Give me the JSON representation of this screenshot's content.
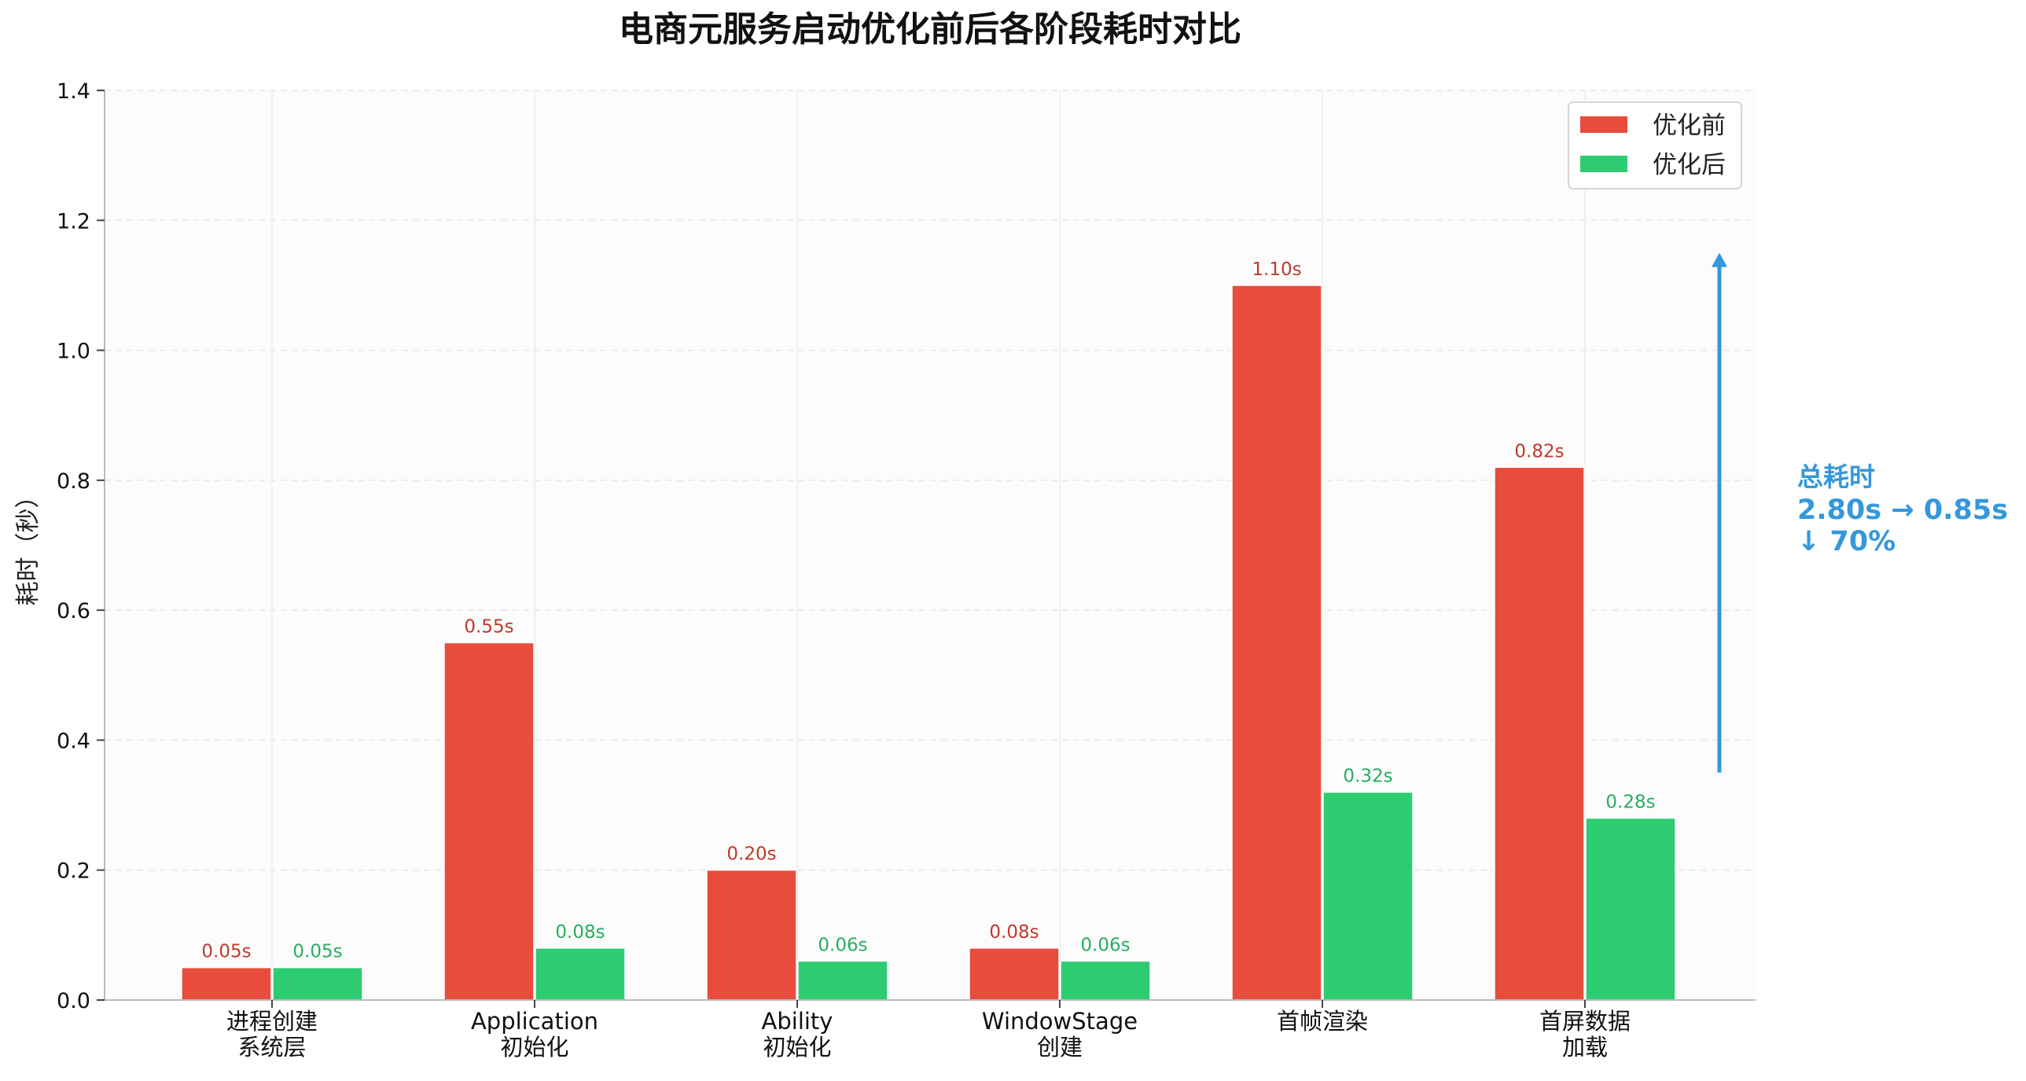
{
  "chart_data": {
    "type": "bar",
    "title": "电商元服务启动优化前后各阶段耗时对比",
    "xlabel": "",
    "ylabel": "耗时（秒）",
    "ylim": [
      0,
      1.4
    ],
    "yticks": [
      "0.0",
      "0.2",
      "0.4",
      "0.6",
      "0.8",
      "1.0",
      "1.2",
      "1.4"
    ],
    "categories": [
      [
        "进程创建",
        "系统层"
      ],
      [
        "Application",
        "初始化"
      ],
      [
        "Ability",
        "初始化"
      ],
      [
        "WindowStage",
        "创建"
      ],
      [
        "首帧渲染"
      ],
      [
        "首屏数据",
        "加载"
      ]
    ],
    "series": [
      {
        "name": "优化前",
        "color": "#e74c3c",
        "label_color": "#c0392b",
        "values": [
          0.05,
          0.55,
          0.2,
          0.08,
          1.1,
          0.82
        ],
        "labels": [
          "0.05s",
          "0.55s",
          "0.20s",
          "0.08s",
          "1.10s",
          "0.82s"
        ]
      },
      {
        "name": "优化后",
        "color": "#2ecc71",
        "label_color": "#27ae60",
        "values": [
          0.05,
          0.08,
          0.06,
          0.06,
          0.32,
          0.28
        ],
        "labels": [
          "0.05s",
          "0.08s",
          "0.06s",
          "0.06s",
          "0.32s",
          "0.28s"
        ]
      }
    ],
    "grid": true,
    "legend": "top-right",
    "annotation": {
      "lines": [
        "总耗时",
        "2.80s → 0.85s",
        "↓ 70%"
      ],
      "color": "#3498db",
      "arrow_from": 0.35,
      "arrow_to": 1.15
    }
  }
}
